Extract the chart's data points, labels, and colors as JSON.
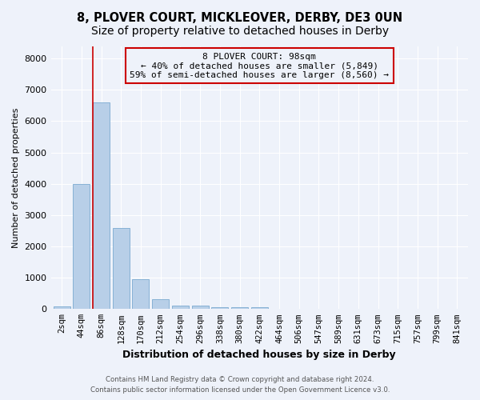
{
  "title": "8, PLOVER COURT, MICKLEOVER, DERBY, DE3 0UN",
  "subtitle": "Size of property relative to detached houses in Derby",
  "xlabel": "Distribution of detached houses by size in Derby",
  "ylabel": "Number of detached properties",
  "bar_labels": [
    "2sqm",
    "44sqm",
    "86sqm",
    "128sqm",
    "170sqm",
    "212sqm",
    "254sqm",
    "296sqm",
    "338sqm",
    "380sqm",
    "422sqm",
    "464sqm",
    "506sqm",
    "547sqm",
    "589sqm",
    "631sqm",
    "673sqm",
    "715sqm",
    "757sqm",
    "799sqm",
    "841sqm"
  ],
  "bar_values": [
    75,
    4000,
    6600,
    2600,
    950,
    310,
    120,
    100,
    55,
    50,
    55,
    0,
    0,
    0,
    0,
    0,
    0,
    0,
    0,
    0,
    0
  ],
  "bar_color": "#b8cfe8",
  "bar_edgecolor": "#7aaad0",
  "vline_color": "#cc0000",
  "annotation_title": "8 PLOVER COURT: 98sqm",
  "annotation_line1": "← 40% of detached houses are smaller (5,849)",
  "annotation_line2": "59% of semi-detached houses are larger (8,560) →",
  "annotation_box_edgecolor": "#cc0000",
  "ylim": [
    0,
    8400
  ],
  "yticks": [
    0,
    1000,
    2000,
    3000,
    4000,
    5000,
    6000,
    7000,
    8000
  ],
  "footnote1": "Contains HM Land Registry data © Crown copyright and database right 2024.",
  "footnote2": "Contains public sector information licensed under the Open Government Licence v3.0.",
  "bg_color": "#eef2fa",
  "grid_color": "#ffffff",
  "title_fontsize": 10.5,
  "ylabel_fontsize": 8,
  "xlabel_fontsize": 9,
  "tick_fontsize": 7.5,
  "annot_fontsize": 8
}
